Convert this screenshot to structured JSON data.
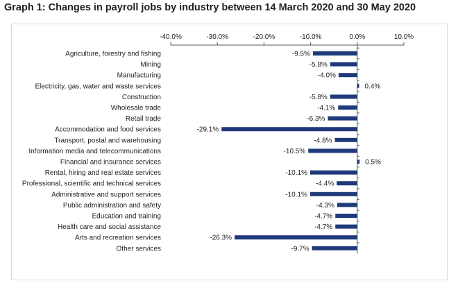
{
  "graph": {
    "title": "Graph 1: Changes in payroll jobs by industry between 14 March 2020 and 30 May 2020"
  },
  "colors": {
    "bar": "#1f3a7a",
    "axis": "#555555",
    "border": "#d9d9d9"
  },
  "chart_data": {
    "type": "bar",
    "orientation": "horizontal",
    "title": "Graph 1: Changes in payroll jobs by industry between 14 March 2020 and 30 May 2020",
    "xlim": [
      -40,
      10
    ],
    "x_ticks": [
      -40,
      -30,
      -20,
      -10,
      0,
      10
    ],
    "x_tick_labels": [
      "-40.0%",
      "-30.0%",
      "-20.0%",
      "-10.0%",
      "0.0%",
      "10.0%"
    ],
    "x_axis_position": "top",
    "grid": false,
    "categories": [
      "Agriculture, forestry and fishing",
      "Mining",
      "Manufacturing",
      "Electricity, gas, water and waste services",
      "Construction",
      "Wholesale trade",
      "Retail trade",
      "Accommodation and food services",
      "Transport, postal and warehousing",
      "Information media and telecommunications",
      "Financial and insurance services",
      "Rental, hiring and real estate services",
      "Professional, scientific and technical services",
      "Administrative and support services",
      "Public administration and safety",
      "Education and training",
      "Health care and social assistance",
      "Arts and recreation services",
      "Other services"
    ],
    "values": [
      -9.5,
      -5.8,
      -4.0,
      0.4,
      -5.8,
      -4.1,
      -6.3,
      -29.1,
      -4.8,
      -10.5,
      0.5,
      -10.1,
      -4.4,
      -10.1,
      -4.3,
      -4.7,
      -4.7,
      -26.3,
      -9.7
    ],
    "data_labels": [
      "-9.5%",
      "-5.8%",
      "-4.0%",
      "0.4%",
      "-5.8%",
      "-4.1%",
      "-6.3%",
      "-29.1%",
      "-4.8%",
      "-10.5%",
      "0.5%",
      "-10.1%",
      "-4.4%",
      "-10.1%",
      "-4.3%",
      "-4.7%",
      "-4.7%",
      "-26.3%",
      "-9.7%"
    ]
  }
}
